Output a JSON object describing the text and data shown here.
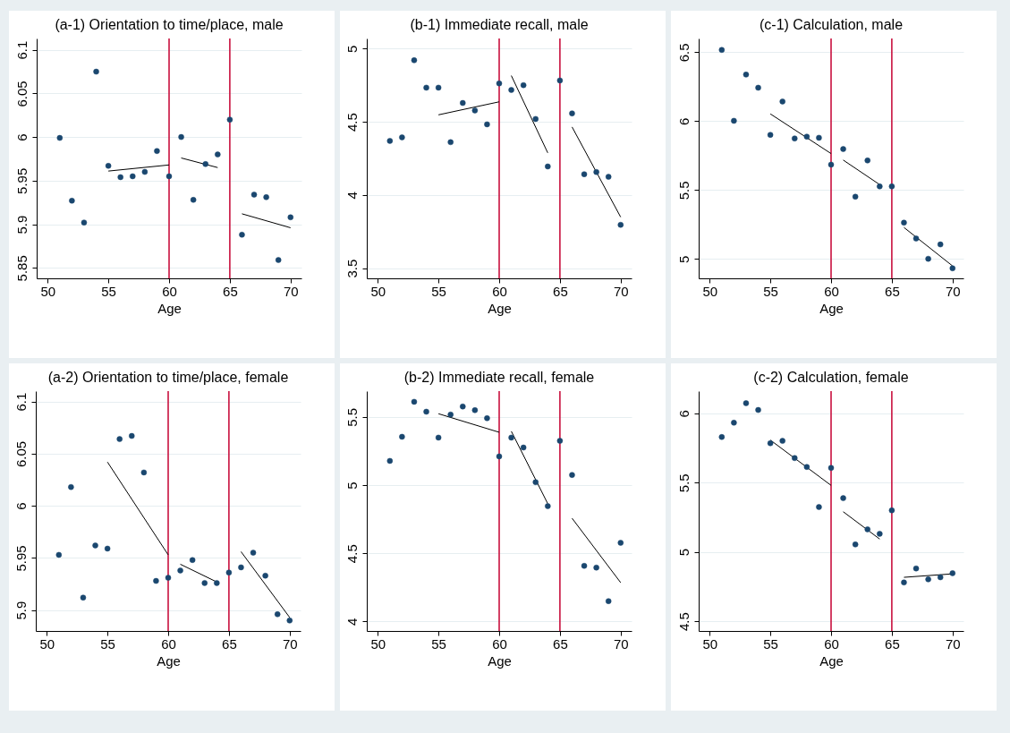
{
  "chart_data": [
    {
      "type": "scatter",
      "title": "(a-1) Orientation to time/place, male",
      "xlabel": "Age",
      "xlim": [
        49.1,
        70.9
      ],
      "xticks": [
        50,
        55,
        60,
        65,
        70
      ],
      "ylim": [
        5.838,
        6.113
      ],
      "yticks": [
        5.85,
        5.9,
        5.95,
        6,
        6.05,
        6.1
      ],
      "grid": "y",
      "series": [
        {
          "type": "scatter",
          "color": "#1a476f",
          "marker": "circle",
          "x": [
            51,
            52,
            53,
            54,
            55,
            56,
            57,
            58,
            59,
            60,
            61,
            62,
            63,
            64,
            65,
            66,
            67,
            68,
            69,
            70
          ],
          "values": [
            5.999,
            5.927,
            5.902,
            6.075,
            5.967,
            5.954,
            5.955,
            5.96,
            5.984,
            5.955,
            6.0,
            5.928,
            5.969,
            5.98,
            6.02,
            5.888,
            5.934,
            5.931,
            5.859,
            5.908
          ]
        },
        {
          "type": "line",
          "marker": "none",
          "color": "#000000",
          "x": [
            55,
            60
          ],
          "values": [
            5.961,
            5.968
          ]
        },
        {
          "type": "line",
          "marker": "none",
          "color": "#000000",
          "x": [
            61,
            64
          ],
          "values": [
            5.976,
            5.965
          ]
        },
        {
          "type": "line",
          "marker": "none",
          "color": "#000000",
          "x": [
            66,
            70
          ],
          "values": [
            5.912,
            5.896
          ]
        }
      ],
      "ref_lines": [
        {
          "axis": "x",
          "value": 60,
          "color": "#c8103e"
        },
        {
          "axis": "x",
          "value": 65,
          "color": "#c8103e"
        }
      ]
    },
    {
      "type": "scatter",
      "title": "(b-1) Immediate recall, male",
      "xlabel": "Age",
      "xlim": [
        49.1,
        70.9
      ],
      "xticks": [
        50,
        55,
        60,
        65,
        70
      ],
      "ylim": [
        3.43,
        5.07
      ],
      "yticks": [
        3.5,
        4,
        4.5,
        5
      ],
      "grid": "y",
      "series": [
        {
          "type": "scatter",
          "color": "#1a476f",
          "marker": "circle",
          "x": [
            51,
            52,
            53,
            54,
            55,
            56,
            57,
            58,
            59,
            60,
            61,
            62,
            63,
            64,
            65,
            66,
            67,
            68,
            69,
            70
          ],
          "values": [
            4.37,
            4.394,
            4.921,
            4.734,
            4.734,
            4.361,
            4.629,
            4.578,
            4.483,
            4.763,
            4.718,
            4.751,
            4.52,
            4.195,
            4.783,
            4.558,
            4.142,
            4.157,
            4.124,
            3.796
          ]
        },
        {
          "type": "line",
          "marker": "none",
          "color": "#000000",
          "x": [
            55,
            60
          ],
          "values": [
            4.548,
            4.637
          ]
        },
        {
          "type": "line",
          "marker": "none",
          "color": "#000000",
          "x": [
            61,
            64
          ],
          "values": [
            4.816,
            4.288
          ]
        },
        {
          "type": "line",
          "marker": "none",
          "color": "#000000",
          "x": [
            66,
            70
          ],
          "values": [
            4.465,
            3.849
          ]
        }
      ],
      "ref_lines": [
        {
          "axis": "x",
          "value": 60,
          "color": "#c8103e"
        },
        {
          "axis": "x",
          "value": 65,
          "color": "#c8103e"
        }
      ]
    },
    {
      "type": "scatter",
      "title": "(c-1) Calculation, male",
      "xlabel": "Age",
      "xlim": [
        49.1,
        70.9
      ],
      "xticks": [
        50,
        55,
        60,
        65,
        70
      ],
      "ylim": [
        4.86,
        6.6
      ],
      "yticks": [
        5,
        5.5,
        6,
        6.5
      ],
      "grid": "y",
      "series": [
        {
          "type": "scatter",
          "color": "#1a476f",
          "marker": "circle",
          "x": [
            51,
            52,
            53,
            54,
            55,
            56,
            57,
            58,
            59,
            60,
            61,
            62,
            63,
            64,
            65,
            66,
            67,
            68,
            69,
            70
          ],
          "values": [
            6.517,
            6.003,
            6.338,
            6.243,
            5.901,
            6.143,
            5.875,
            5.888,
            5.88,
            5.685,
            5.798,
            5.452,
            5.715,
            5.527,
            5.527,
            5.264,
            5.149,
            5.002,
            5.106,
            4.933
          ]
        },
        {
          "type": "line",
          "marker": "none",
          "color": "#000000",
          "x": [
            55,
            60
          ],
          "values": [
            6.053,
            5.765
          ]
        },
        {
          "type": "line",
          "marker": "none",
          "color": "#000000",
          "x": [
            61,
            64
          ],
          "values": [
            5.718,
            5.54
          ]
        },
        {
          "type": "line",
          "marker": "none",
          "color": "#000000",
          "x": [
            66,
            70
          ],
          "values": [
            5.229,
            4.95
          ]
        }
      ],
      "ref_lines": [
        {
          "axis": "x",
          "value": 60,
          "color": "#c8103e"
        },
        {
          "axis": "x",
          "value": 65,
          "color": "#c8103e"
        }
      ]
    },
    {
      "type": "scatter",
      "title": "(a-2) Orientation to time/place, female",
      "xlabel": "Age",
      "xlim": [
        49.1,
        70.9
      ],
      "xticks": [
        50,
        55,
        60,
        65,
        70
      ],
      "ylim": [
        5.88,
        6.11
      ],
      "yticks": [
        5.9,
        5.95,
        6,
        6.05,
        6.1
      ],
      "grid": "y",
      "series": [
        {
          "type": "scatter",
          "color": "#1a476f",
          "marker": "circle",
          "x": [
            51,
            52,
            53,
            54,
            55,
            56,
            57,
            58,
            59,
            60,
            61,
            62,
            63,
            64,
            65,
            66,
            67,
            68,
            69,
            70
          ],
          "values": [
            5.953,
            6.018,
            5.912,
            5.962,
            5.959,
            6.064,
            6.067,
            6.032,
            5.928,
            5.931,
            5.938,
            5.948,
            5.926,
            5.926,
            5.936,
            5.941,
            5.955,
            5.933,
            5.896,
            5.89
          ]
        },
        {
          "type": "line",
          "marker": "none",
          "color": "#000000",
          "x": [
            55,
            60
          ],
          "values": [
            6.042,
            5.953
          ]
        },
        {
          "type": "line",
          "marker": "none",
          "color": "#000000",
          "x": [
            61,
            64
          ],
          "values": [
            5.944,
            5.927
          ]
        },
        {
          "type": "line",
          "marker": "none",
          "color": "#000000",
          "x": [
            66,
            70
          ],
          "values": [
            5.956,
            5.893
          ]
        }
      ],
      "ref_lines": [
        {
          "axis": "x",
          "value": 60,
          "color": "#c8103e"
        },
        {
          "axis": "x",
          "value": 65,
          "color": "#c8103e"
        }
      ]
    },
    {
      "type": "scatter",
      "title": "(b-2) Immediate recall, female",
      "xlabel": "Age",
      "xlim": [
        49.1,
        70.9
      ],
      "xticks": [
        50,
        55,
        60,
        65,
        70
      ],
      "ylim": [
        3.93,
        5.69
      ],
      "yticks": [
        4,
        4.5,
        5,
        5.5
      ],
      "grid": "y",
      "series": [
        {
          "type": "scatter",
          "color": "#1a476f",
          "marker": "circle",
          "x": [
            51,
            52,
            53,
            54,
            55,
            56,
            57,
            58,
            59,
            60,
            61,
            62,
            63,
            64,
            65,
            66,
            67,
            68,
            69,
            70
          ],
          "values": [
            5.178,
            5.355,
            5.612,
            5.539,
            5.349,
            5.518,
            5.577,
            5.55,
            5.491,
            5.211,
            5.349,
            5.276,
            5.022,
            4.846,
            5.325,
            5.075,
            4.408,
            4.395,
            4.149,
            4.577
          ]
        },
        {
          "type": "line",
          "marker": "none",
          "color": "#000000",
          "x": [
            55,
            60
          ],
          "values": [
            5.524,
            5.388
          ]
        },
        {
          "type": "line",
          "marker": "none",
          "color": "#000000",
          "x": [
            61,
            64
          ],
          "values": [
            5.395,
            4.864
          ]
        },
        {
          "type": "line",
          "marker": "none",
          "color": "#000000",
          "x": [
            66,
            70
          ],
          "values": [
            4.757,
            4.285
          ]
        }
      ],
      "ref_lines": [
        {
          "axis": "x",
          "value": 60,
          "color": "#c8103e"
        },
        {
          "axis": "x",
          "value": 65,
          "color": "#c8103e"
        }
      ]
    },
    {
      "type": "scatter",
      "title": "(c-2) Calculation, female",
      "xlabel": "Age",
      "xlim": [
        49.1,
        70.9
      ],
      "xticks": [
        50,
        55,
        60,
        65,
        70
      ],
      "ylim": [
        4.43,
        6.16
      ],
      "yticks": [
        4.5,
        5,
        5.5,
        6
      ],
      "grid": "y",
      "series": [
        {
          "type": "scatter",
          "color": "#1a476f",
          "marker": "circle",
          "x": [
            51,
            52,
            53,
            54,
            55,
            56,
            57,
            58,
            59,
            60,
            61,
            62,
            63,
            64,
            65,
            66,
            67,
            68,
            69,
            70
          ],
          "values": [
            5.829,
            5.932,
            6.073,
            6.024,
            5.784,
            5.801,
            5.677,
            5.613,
            5.324,
            5.606,
            5.388,
            5.054,
            5.163,
            5.131,
            5.3,
            4.78,
            4.881,
            4.802,
            4.817,
            4.847
          ]
        },
        {
          "type": "line",
          "marker": "none",
          "color": "#000000",
          "x": [
            55,
            60
          ],
          "values": [
            5.807,
            5.48
          ]
        },
        {
          "type": "line",
          "marker": "none",
          "color": "#000000",
          "x": [
            61,
            64
          ],
          "values": [
            5.29,
            5.093
          ]
        },
        {
          "type": "line",
          "marker": "none",
          "color": "#000000",
          "x": [
            66,
            70
          ],
          "values": [
            4.817,
            4.842
          ]
        }
      ],
      "ref_lines": [
        {
          "axis": "x",
          "value": 60,
          "color": "#c8103e"
        },
        {
          "axis": "x",
          "value": 65,
          "color": "#c8103e"
        }
      ]
    }
  ]
}
